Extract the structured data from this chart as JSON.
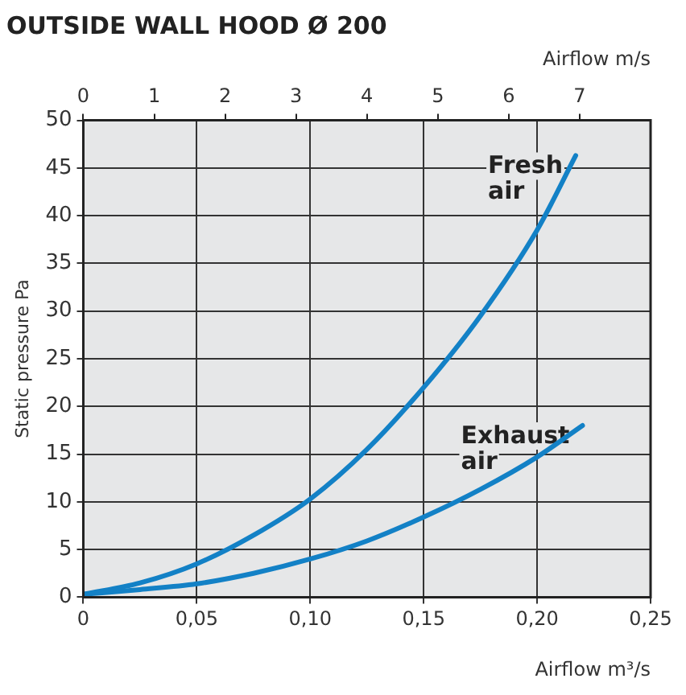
{
  "chart_data": {
    "type": "line",
    "title": "OUTSIDE WALL HOOD Ø 200",
    "xlabel": "Airflow m³/s",
    "x2label": "Airflow m/s",
    "ylabel": "Static pressure Pa",
    "xlim": [
      0,
      0.25
    ],
    "xticks": [
      0,
      {
        "value": 0.05,
        "label": "0,05"
      },
      {
        "value": 0.1,
        "label": "0,10"
      },
      {
        "value": 0.15,
        "label": "0,15"
      },
      {
        "value": 0.2,
        "label": "0,20"
      },
      {
        "value": 0.25,
        "label": "0,25"
      }
    ],
    "x2lim": [
      0,
      8
    ],
    "x2ticks": [
      0,
      1,
      2,
      3,
      4,
      5,
      6,
      7
    ],
    "ylim": [
      0,
      50
    ],
    "yticks": [
      0,
      5,
      10,
      15,
      20,
      25,
      30,
      35,
      40,
      45,
      50
    ],
    "grid": true,
    "legend": false,
    "marker": "none",
    "line_style": "solid",
    "series": [
      {
        "name": "Fresh air",
        "color": "#1381c6",
        "x": [
          0,
          0.025,
          0.05,
          0.075,
          0.1,
          0.125,
          0.15,
          0.175,
          0.2,
          0.217
        ],
        "values": [
          0.3,
          1.5,
          3.5,
          6.5,
          10.3,
          15.5,
          22,
          29.5,
          38.5,
          46.3
        ]
      },
      {
        "name": "Exhaust air",
        "color": "#1381c6",
        "x": [
          0,
          0.025,
          0.05,
          0.075,
          0.1,
          0.125,
          0.15,
          0.175,
          0.2,
          0.22
        ],
        "values": [
          0.3,
          0.8,
          1.4,
          2.5,
          4,
          5.9,
          8.4,
          11.3,
          14.7,
          18
        ]
      }
    ]
  }
}
